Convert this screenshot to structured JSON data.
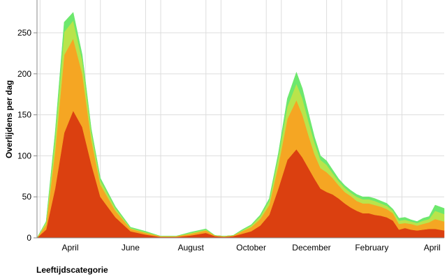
{
  "chart_data": {
    "type": "area",
    "stacked": true,
    "title": "",
    "xlabel": "",
    "ylabel": "Overlijdens per dag",
    "legend_title": "Leeftijdscategorie",
    "ylim": [
      0,
      290
    ],
    "y_ticks": [
      0,
      50,
      100,
      150,
      200,
      250
    ],
    "x_ticks": [
      "April",
      "June",
      "August",
      "October",
      "December",
      "February",
      "April"
    ],
    "x_tick_index": [
      0.5,
      2.5,
      4.5,
      6.5,
      8.5,
      10.5,
      12.5
    ],
    "x_range": [
      -0.6,
      12.9
    ],
    "grid": true,
    "x": [
      -0.6,
      -0.3,
      0,
      0.3,
      0.6,
      0.9,
      1.2,
      1.5,
      2.0,
      2.5,
      3.0,
      3.5,
      4.0,
      4.5,
      5.0,
      5.3,
      5.6,
      5.9,
      6.2,
      6.5,
      6.8,
      7.1,
      7.4,
      7.7,
      8.0,
      8.2,
      8.4,
      8.6,
      8.8,
      9.0,
      9.2,
      9.4,
      9.6,
      9.8,
      10.0,
      10.2,
      10.4,
      10.6,
      10.8,
      11.0,
      11.2,
      11.4,
      11.6,
      11.8,
      12.0,
      12.2,
      12.4,
      12.6,
      12.9
    ],
    "series": [
      {
        "color": "#db4010",
        "values": [
          0,
          10,
          60,
          128,
          155,
          135,
          90,
          50,
          25,
          8,
          4,
          1,
          1,
          3,
          6,
          2,
          1,
          2,
          5,
          8,
          15,
          28,
          60,
          95,
          108,
          98,
          85,
          72,
          60,
          56,
          53,
          48,
          42,
          37,
          33,
          30,
          30,
          28,
          27,
          25,
          21,
          10,
          12,
          10,
          9,
          10,
          11,
          11,
          9
        ]
      },
      {
        "color": "#f5a623",
        "values": [
          0,
          6,
          45,
          95,
          88,
          65,
          30,
          15,
          8,
          3,
          2,
          1,
          1,
          2,
          3,
          1,
          1,
          1,
          3,
          5,
          8,
          12,
          28,
          50,
          60,
          52,
          40,
          30,
          25,
          24,
          20,
          16,
          14,
          14,
          12,
          12,
          12,
          12,
          11,
          10,
          9,
          7,
          6,
          7,
          6,
          7,
          8,
          12,
          11
        ]
      },
      {
        "color": "#b9e44b",
        "values": [
          0,
          3,
          15,
          28,
          22,
          16,
          9,
          5,
          3,
          1,
          1,
          0,
          0,
          1,
          1,
          0,
          0,
          0,
          1,
          2,
          3,
          5,
          10,
          15,
          20,
          20,
          17,
          14,
          10,
          9,
          6,
          5,
          5,
          4,
          5,
          5,
          5,
          5,
          4,
          4,
          3,
          4,
          4,
          3,
          3,
          4,
          4,
          10,
          9
        ]
      },
      {
        "color": "#6de86d",
        "values": [
          0,
          1,
          8,
          12,
          10,
          7,
          4,
          3,
          2,
          1,
          1,
          0,
          0,
          1,
          1,
          0,
          0,
          0,
          1,
          1,
          2,
          3,
          5,
          10,
          14,
          12,
          10,
          7,
          5,
          5,
          4,
          3,
          3,
          3,
          3,
          3,
          3,
          3,
          3,
          3,
          2,
          3,
          3,
          2,
          2,
          3,
          3,
          7,
          7
        ]
      }
    ]
  }
}
